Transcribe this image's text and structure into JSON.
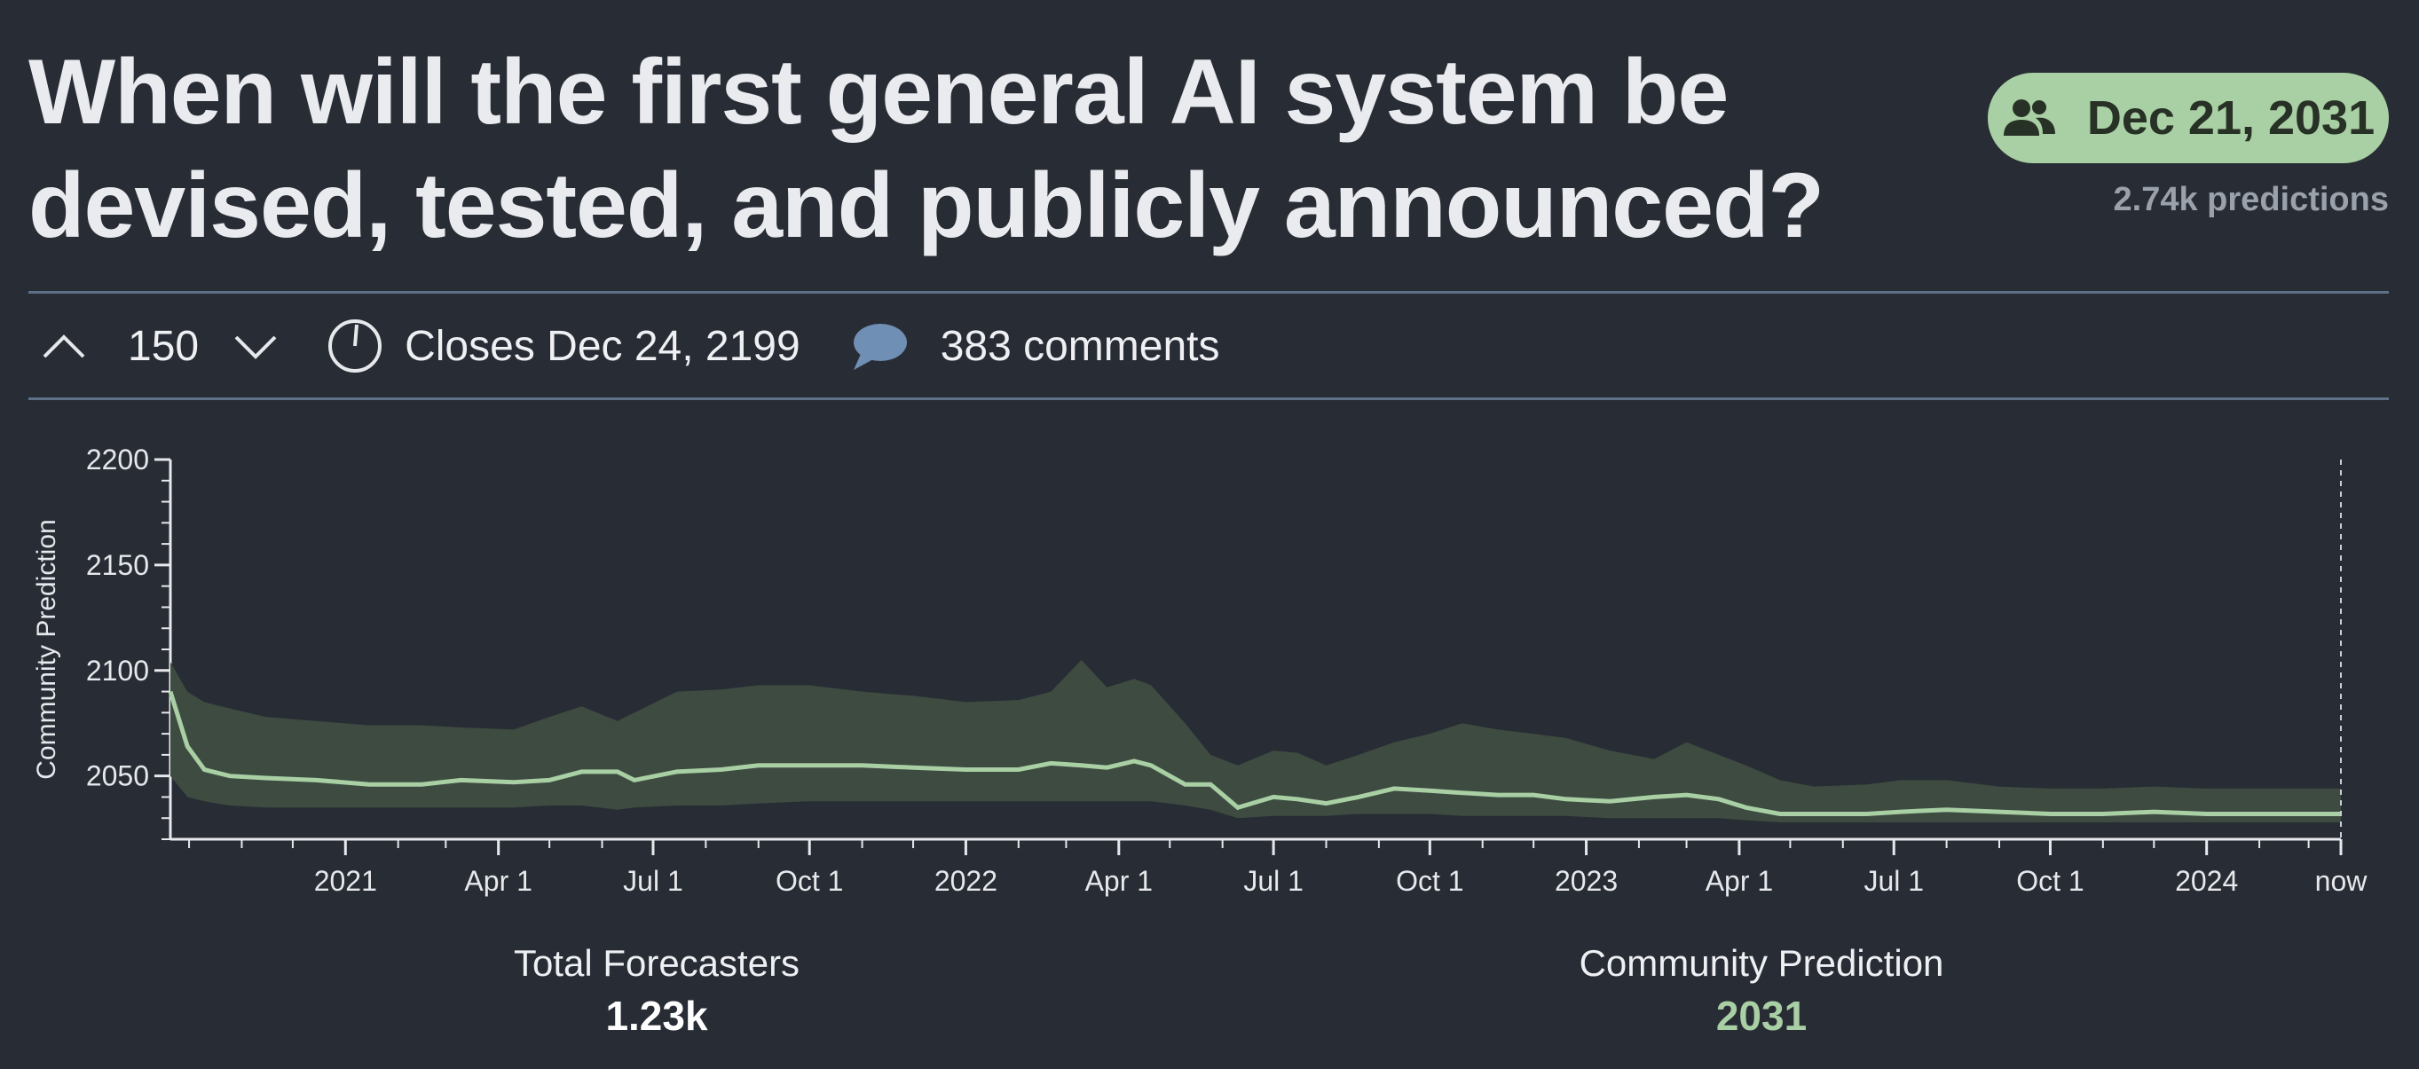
{
  "question": {
    "title": "When will the first general AI system be devised, tested, and publicly announced?"
  },
  "prediction_pill": {
    "icon": "users-icon",
    "value": "Dec 21, 2031",
    "predictions": "2.74k predictions",
    "color": "#a9cfa4"
  },
  "meta": {
    "votes": "150",
    "closes": "Closes Dec 24, 2199",
    "comments": "383 comments"
  },
  "stats": {
    "forecasters_label": "Total Forecasters",
    "forecasters_value": "1.23k",
    "cp_label": "Community Prediction",
    "cp_value": "2031"
  },
  "chart_data": {
    "type": "area",
    "ylabel": "Community Prediction",
    "ylim": [
      2020,
      2200
    ],
    "yticks": [
      2050,
      2100,
      2150,
      2200
    ],
    "x_tick_labels": [
      "2021",
      "Apr 1",
      "Jul 1",
      "Oct 1",
      "2022",
      "Apr 1",
      "Jul 1",
      "Oct 1",
      "2023",
      "Apr 1",
      "Jul 1",
      "Oct 1",
      "2024",
      "now"
    ],
    "x_tick_dates": [
      "2021-01-01",
      "2021-04-01",
      "2021-07-01",
      "2021-10-01",
      "2022-01-01",
      "2022-04-01",
      "2022-07-01",
      "2022-10-01",
      "2023-01-01",
      "2023-04-01",
      "2023-07-01",
      "2023-10-01",
      "2024-01-01",
      "2024-03-20"
    ],
    "xlim": [
      "2020-09-20",
      "2024-03-20"
    ],
    "grid": false,
    "series": [
      {
        "color": "#a9cfa4",
        "band_color": "#3d4b40",
        "x": [
          "2020-09-20",
          "2020-09-30",
          "2020-10-10",
          "2020-10-25",
          "2020-11-15",
          "2020-12-15",
          "2021-01-15",
          "2021-02-15",
          "2021-03-10",
          "2021-04-10",
          "2021-05-01",
          "2021-05-20",
          "2021-06-10",
          "2021-06-20",
          "2021-07-15",
          "2021-08-10",
          "2021-09-01",
          "2021-10-01",
          "2021-11-01",
          "2021-12-01",
          "2022-01-01",
          "2022-02-01",
          "2022-02-20",
          "2022-03-10",
          "2022-03-25",
          "2022-04-10",
          "2022-04-20",
          "2022-05-10",
          "2022-05-25",
          "2022-06-10",
          "2022-07-01",
          "2022-07-15",
          "2022-08-01",
          "2022-08-20",
          "2022-09-10",
          "2022-10-01",
          "2022-10-20",
          "2022-11-10",
          "2022-12-01",
          "2022-12-20",
          "2023-01-15",
          "2023-02-10",
          "2023-03-01",
          "2023-03-20",
          "2023-04-05",
          "2023-04-25",
          "2023-05-15",
          "2023-06-15",
          "2023-07-05",
          "2023-08-01",
          "2023-09-01",
          "2023-10-01",
          "2023-11-01",
          "2023-12-01",
          "2024-01-01",
          "2024-02-01",
          "2024-03-20"
        ],
        "y": [
          2090,
          2064,
          2053,
          2050,
          2049,
          2048,
          2046,
          2046,
          2048,
          2047,
          2048,
          2052,
          2052,
          2048,
          2052,
          2053,
          2055,
          2055,
          2055,
          2054,
          2053,
          2053,
          2056,
          2055,
          2054,
          2057,
          2055,
          2046,
          2046,
          2035,
          2040,
          2039,
          2037,
          2040,
          2044,
          2043,
          2042,
          2041,
          2041,
          2039,
          2038,
          2040,
          2041,
          2039,
          2035,
          2032,
          2032,
          2032,
          2033,
          2034,
          2033,
          2032,
          2032,
          2033,
          2032,
          2032,
          2032
        ],
        "upper": [
          2104,
          2090,
          2085,
          2082,
          2078,
          2076,
          2074,
          2074,
          2073,
          2072,
          2078,
          2083,
          2076,
          2080,
          2090,
          2091,
          2093,
          2093,
          2090,
          2088,
          2085,
          2086,
          2090,
          2105,
          2092,
          2096,
          2093,
          2075,
          2060,
          2055,
          2062,
          2061,
          2055,
          2060,
          2066,
          2070,
          2075,
          2072,
          2070,
          2068,
          2062,
          2058,
          2066,
          2060,
          2055,
          2048,
          2045,
          2046,
          2048,
          2048,
          2045,
          2044,
          2044,
          2045,
          2044,
          2044,
          2044
        ],
        "lower": [
          2050,
          2040,
          2038,
          2036,
          2035,
          2035,
          2035,
          2035,
          2035,
          2035,
          2036,
          2036,
          2034,
          2035,
          2036,
          2036,
          2037,
          2038,
          2038,
          2038,
          2038,
          2038,
          2038,
          2038,
          2038,
          2038,
          2038,
          2036,
          2034,
          2030,
          2031,
          2031,
          2031,
          2032,
          2032,
          2032,
          2031,
          2031,
          2031,
          2031,
          2030,
          2030,
          2030,
          2030,
          2029,
          2028,
          2028,
          2028,
          2028,
          2028,
          2028,
          2028,
          2028,
          2028,
          2028,
          2028,
          2028
        ]
      }
    ]
  }
}
